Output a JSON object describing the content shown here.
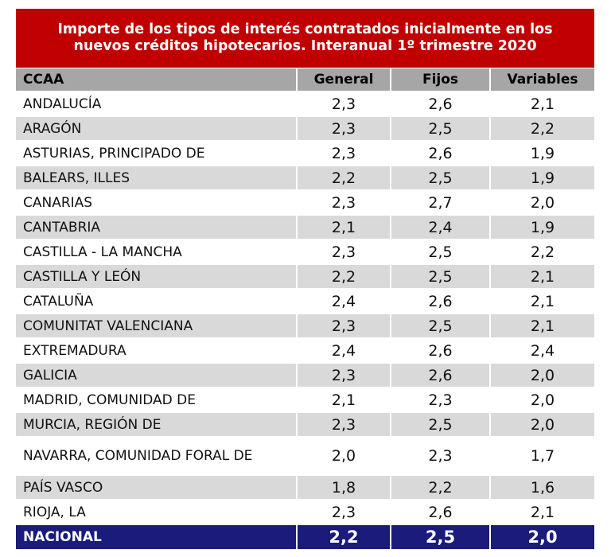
{
  "title": {
    "line1": "Importe de los tipos de interés contratados inicialmente en los",
    "line2": "nuevos créditos hipotecarios. Interanual 1º trimestre 2020"
  },
  "headers": [
    "CCAA",
    "General",
    "Fijos",
    "Variables"
  ],
  "rows": [
    [
      "ANDALUCÍA",
      "2,3",
      "2,6",
      "2,1"
    ],
    [
      "ARAGÓN",
      "2,3",
      "2,5",
      "2,2"
    ],
    [
      "ASTURIAS, PRINCIPADO DE",
      "2,3",
      "2,6",
      "1,9"
    ],
    [
      "BALEARS, ILLES",
      "2,2",
      "2,5",
      "1,9"
    ],
    [
      "CANARIAS",
      "2,3",
      "2,7",
      "2,0"
    ],
    [
      "CANTABRIA",
      "2,1",
      "2,4",
      "1,9"
    ],
    [
      "CASTILLA - LA MANCHA",
      "2,3",
      "2,5",
      "2,2"
    ],
    [
      "CASTILLA Y LEÓN",
      "2,2",
      "2,5",
      "2,1"
    ],
    [
      "CATALUÑA",
      "2,4",
      "2,6",
      "2,1"
    ],
    [
      "COMUNITAT VALENCIANA",
      "2,3",
      "2,5",
      "2,1"
    ],
    [
      "EXTREMADURA",
      "2,4",
      "2,6",
      "2,4"
    ],
    [
      "GALICIA",
      "2,3",
      "2,6",
      "2,0"
    ],
    [
      "MADRID, COMUNIDAD DE",
      "2,1",
      "2,3",
      "2,0"
    ],
    [
      "MURCIA, REGIÓN DE",
      "2,3",
      "2,5",
      "2,0"
    ],
    [
      "NAVARRA, COMUNIDAD FORAL DE",
      "2,0",
      "2,3",
      "1,7"
    ],
    [
      "PAÍS VASCO",
      "1,8",
      "2,2",
      "1,6"
    ],
    [
      "RIOJA, LA",
      "2,3",
      "2,6",
      "2,1"
    ]
  ],
  "total": [
    "NACIONAL",
    "2,2",
    "2,5",
    "2,0"
  ],
  "colors": {
    "title_bg": "#c00000",
    "header_bg": "#a6a6a6",
    "stripe_bg": "#d9d9d9",
    "total_bg": "#1a1b7a"
  }
}
